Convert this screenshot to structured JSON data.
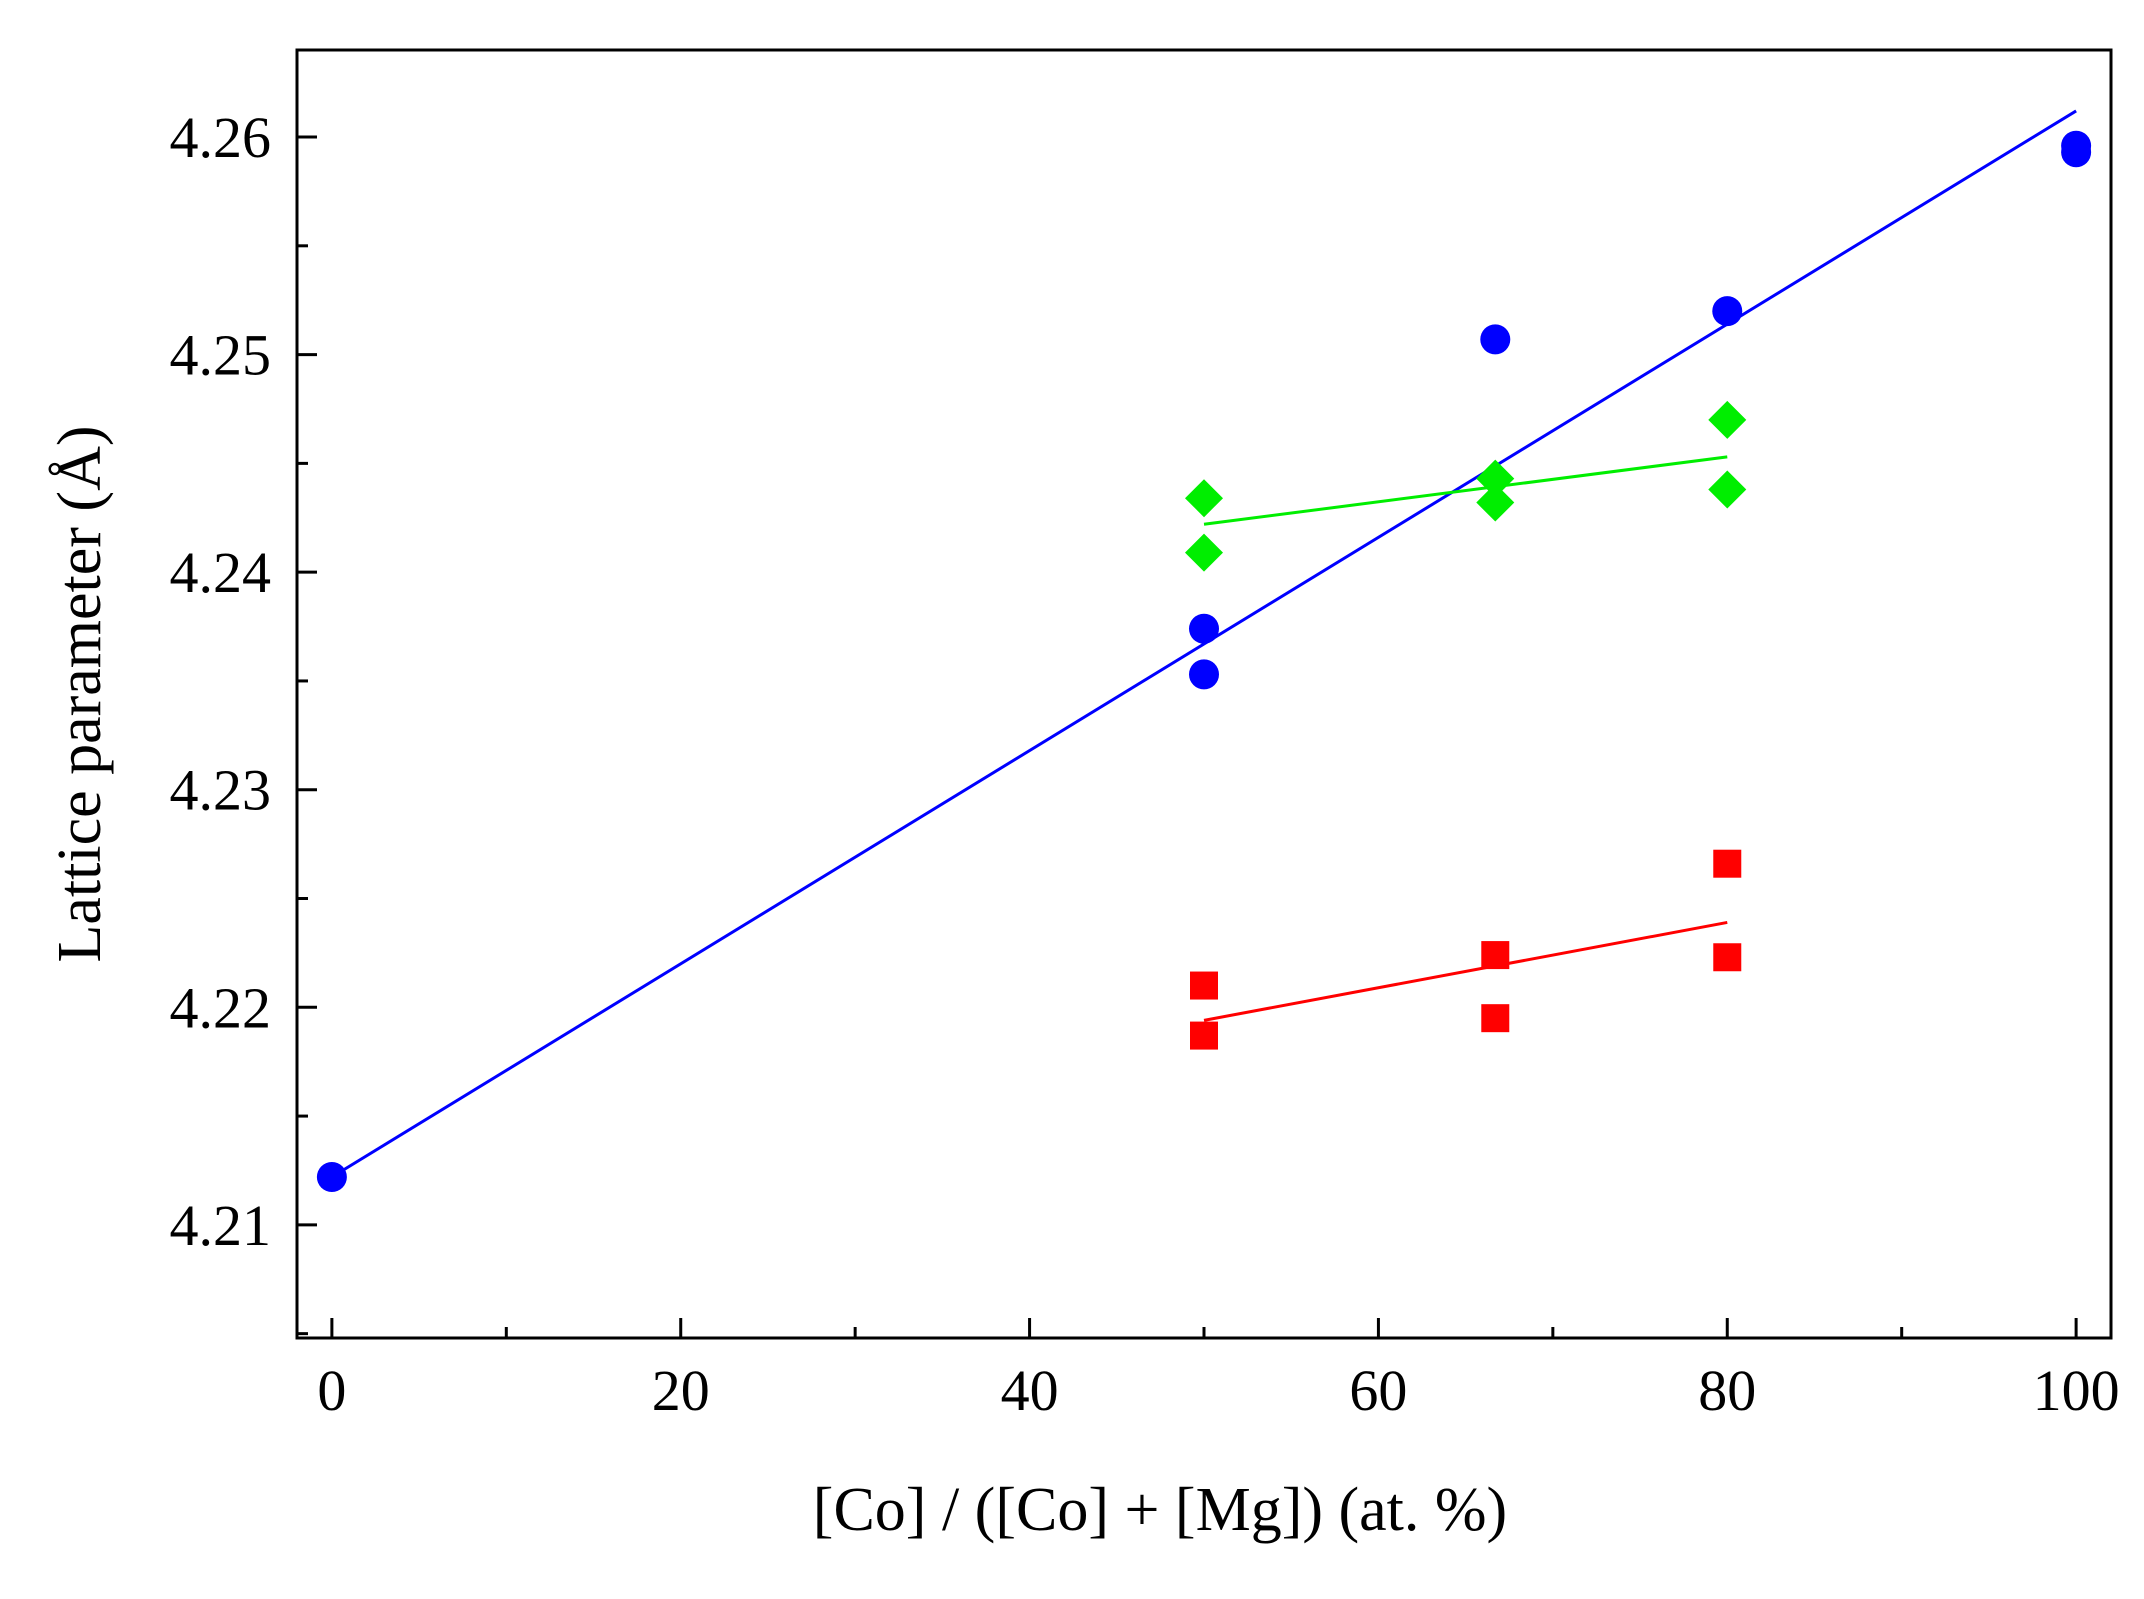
{
  "chart_data": {
    "type": "scatter",
    "title": "",
    "xlabel": "[Co] / ([Co] + [Mg]) (at. %)",
    "ylabel": "Lattice parameter (Å)",
    "xlim": [
      -2,
      102
    ],
    "ylim": [
      4.2048,
      4.264
    ],
    "x_ticks": [
      0,
      20,
      40,
      60,
      80,
      100
    ],
    "x_tick_labels": [
      "0",
      "20",
      "40",
      "60",
      "80",
      "100"
    ],
    "x_minor_ticks": [
      10,
      30,
      50,
      70,
      90
    ],
    "y_ticks": [
      4.21,
      4.22,
      4.23,
      4.24,
      4.25,
      4.26
    ],
    "y_tick_labels": [
      "4.21",
      "4.22",
      "4.23",
      "4.24",
      "4.25",
      "4.26"
    ],
    "y_minor_ticks": [
      4.205,
      4.215,
      4.225,
      4.235,
      4.245,
      4.255
    ],
    "grid": false,
    "legend": "none",
    "series": [
      {
        "name": "blue circles",
        "marker": "circle",
        "color": "#0000ff",
        "points": [
          {
            "x": 0,
            "y": 4.2122
          },
          {
            "x": 50,
            "y": 4.2374
          },
          {
            "x": 50,
            "y": 4.2353
          },
          {
            "x": 66.7,
            "y": 4.2507
          },
          {
            "x": 80,
            "y": 4.252
          },
          {
            "x": 100,
            "y": 4.2593
          },
          {
            "x": 100,
            "y": 4.2596
          }
        ],
        "fit": {
          "x": [
            0,
            100
          ],
          "y": [
            4.2122,
            4.2612
          ]
        }
      },
      {
        "name": "green diamonds",
        "marker": "diamond",
        "color": "#00ee00",
        "points": [
          {
            "x": 50,
            "y": 4.2434
          },
          {
            "x": 50,
            "y": 4.2409
          },
          {
            "x": 66.7,
            "y": 4.2443
          },
          {
            "x": 66.7,
            "y": 4.2432
          },
          {
            "x": 80,
            "y": 4.247
          },
          {
            "x": 80,
            "y": 4.2438
          }
        ],
        "fit": {
          "x": [
            50,
            80
          ],
          "y": [
            4.2422,
            4.2453
          ]
        }
      },
      {
        "name": "red squares",
        "marker": "square",
        "color": "#ff0000",
        "points": [
          {
            "x": 50,
            "y": 4.221
          },
          {
            "x": 50,
            "y": 4.2187
          },
          {
            "x": 66.7,
            "y": 4.2224
          },
          {
            "x": 66.7,
            "y": 4.2195
          },
          {
            "x": 80,
            "y": 4.2266
          },
          {
            "x": 80,
            "y": 4.2223
          }
        ],
        "fit": {
          "x": [
            50,
            80
          ],
          "y": [
            4.2194,
            4.2239
          ]
        }
      }
    ]
  }
}
